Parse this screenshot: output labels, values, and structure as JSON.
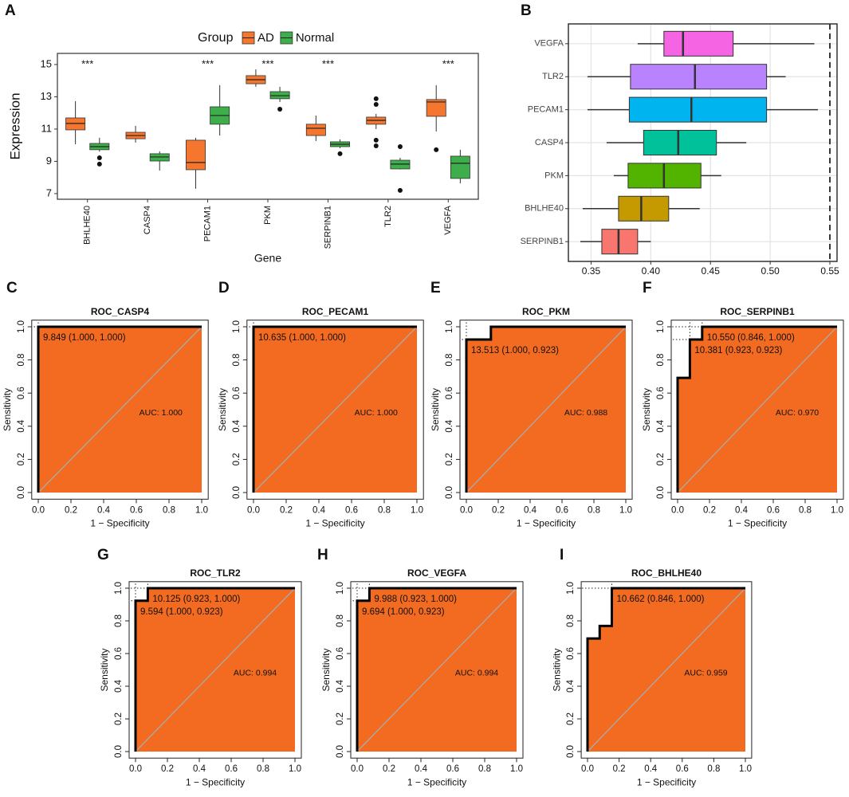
{
  "chart_data": [
    {
      "panel": "A",
      "type": "box",
      "orientation": "vertical",
      "legend_title": "Group",
      "x_label": "Gene",
      "y_label": "Expression",
      "categories": [
        "BHLHE40",
        "CASP4",
        "PECAM1",
        "PKM",
        "SERPINB1",
        "TLR2",
        "VEGFA"
      ],
      "significance": [
        "***",
        null,
        "***",
        "***",
        "***",
        null,
        "***"
      ],
      "ylim": [
        6.65,
        15.69
      ],
      "yticks": [
        7,
        9,
        11,
        13,
        15
      ],
      "series": [
        {
          "name": "AD",
          "color": "#F4762F",
          "boxes": [
            {
              "min": 10.06,
              "q1": 10.95,
              "median": 11.35,
              "q3": 11.69,
              "max": 12.73,
              "outliers": []
            },
            {
              "min": 10.16,
              "q1": 10.4,
              "median": 10.6,
              "q3": 10.8,
              "max": 11.2,
              "outliers": []
            },
            {
              "min": 7.3,
              "q1": 8.48,
              "median": 8.93,
              "q3": 10.31,
              "max": 10.46,
              "outliers": []
            },
            {
              "min": 13.62,
              "q1": 13.81,
              "median": 14.06,
              "q3": 14.31,
              "max": 14.7,
              "outliers": []
            },
            {
              "min": 10.26,
              "q1": 10.6,
              "median": 11.05,
              "q3": 11.3,
              "max": 11.84,
              "outliers": []
            },
            {
              "min": 11.0,
              "q1": 11.3,
              "median": 11.54,
              "q3": 11.74,
              "max": 11.94,
              "outliers": [
                12.88,
                12.53,
                10.31,
                9.96
              ]
            },
            {
              "min": 10.85,
              "q1": 11.79,
              "median": 12.68,
              "q3": 12.83,
              "max": 13.72,
              "outliers": [
                9.72
              ]
            }
          ]
        },
        {
          "name": "Normal",
          "color": "#3DAE4A",
          "boxes": [
            {
              "min": 9.6,
              "q1": 9.72,
              "median": 9.91,
              "q3": 10.11,
              "max": 10.46,
              "outliers": [
                9.22,
                8.83
              ]
            },
            {
              "min": 8.43,
              "q1": 9.02,
              "median": 9.27,
              "q3": 9.47,
              "max": 9.62,
              "outliers": []
            },
            {
              "min": 10.6,
              "q1": 11.3,
              "median": 11.84,
              "q3": 12.38,
              "max": 13.72,
              "outliers": []
            },
            {
              "min": 12.68,
              "q1": 12.88,
              "median": 13.07,
              "q3": 13.32,
              "max": 13.62,
              "outliers": [
                12.23
              ]
            },
            {
              "min": 9.81,
              "q1": 9.91,
              "median": 10.06,
              "q3": 10.21,
              "max": 10.36,
              "outliers": [
                9.47
              ]
            },
            {
              "min": 8.5,
              "q1": 8.53,
              "median": 8.83,
              "q3": 9.07,
              "max": 9.22,
              "outliers": [
                9.91,
                7.2
              ]
            },
            {
              "min": 7.64,
              "q1": 7.94,
              "median": 8.88,
              "q3": 9.32,
              "max": 9.72,
              "outliers": []
            }
          ]
        }
      ]
    },
    {
      "panel": "B",
      "type": "box",
      "orientation": "horizontal",
      "grid": true,
      "categories": [
        "VEGFA",
        "TLR2",
        "PECAM1",
        "CASP4",
        "PKM",
        "BHLHE40",
        "SERPINB1"
      ],
      "colors": [
        "#F564E3",
        "#B983FF",
        "#00B4EF",
        "#00C19A",
        "#53B400",
        "#C49A00",
        "#F8766D"
      ],
      "boxes": [
        {
          "min": 0.389,
          "q1": 0.411,
          "median": 0.427,
          "q3": 0.469,
          "max": 0.537
        },
        {
          "min": 0.347,
          "q1": 0.383,
          "median": 0.437,
          "q3": 0.497,
          "max": 0.513
        },
        {
          "min": 0.347,
          "q1": 0.382,
          "median": 0.434,
          "q3": 0.497,
          "max": 0.54
        },
        {
          "min": 0.363,
          "q1": 0.394,
          "median": 0.423,
          "q3": 0.455,
          "max": 0.48
        },
        {
          "min": 0.369,
          "q1": 0.381,
          "median": 0.411,
          "q3": 0.442,
          "max": 0.459
        },
        {
          "min": 0.343,
          "q1": 0.373,
          "median": 0.392,
          "q3": 0.415,
          "max": 0.441
        },
        {
          "min": 0.341,
          "q1": 0.359,
          "median": 0.373,
          "q3": 0.389,
          "max": 0.4
        }
      ],
      "reference_line": 0.55,
      "xlim": [
        0.331,
        0.556
      ],
      "xticks": [
        0.35,
        {
          "value": 0.4,
          "label": "0.40"
        },
        0.45,
        {
          "value": 0.5,
          "label": "0.50"
        },
        0.55
      ]
    },
    {
      "panel": "C",
      "type": "roc",
      "title": "ROC_CASP4",
      "x_label": "1 − Specificity",
      "y_label": "Sensitivity",
      "x": [
        0,
        0,
        1
      ],
      "values": [
        0,
        1,
        1
      ],
      "color": "#000000",
      "fill_color": "#F26B21",
      "diagonal_color": "#AAAAAA",
      "thresholds": [
        {
          "label": "9.849 (1.000, 1.000)",
          "x": 0,
          "y": 1
        }
      ],
      "auc_label": "AUC: 1.000",
      "xlim": [
        -0.04,
        1.04
      ],
      "ylim": [
        -0.04,
        1.04
      ],
      "xticks": [
        {
          "value": 0,
          "label": "0.0"
        },
        0.2,
        0.4,
        0.6,
        0.8,
        {
          "value": 1,
          "label": "1.0"
        }
      ],
      "yticks": [
        {
          "value": 0,
          "label": "0.0"
        },
        0.2,
        0.4,
        0.6,
        0.8,
        {
          "value": 1,
          "label": "1.0"
        }
      ]
    },
    {
      "panel": "D",
      "type": "roc",
      "title": "ROC_PECAM1",
      "x_label": "1 − Specificity",
      "y_label": "Sensitivity",
      "x": [
        0,
        0,
        1
      ],
      "values": [
        0,
        1,
        1
      ],
      "color": "#000000",
      "fill_color": "#F26B21",
      "diagonal_color": "#AAAAAA",
      "thresholds": [
        {
          "label": "10.635 (1.000, 1.000)",
          "x": 0,
          "y": 1
        }
      ],
      "auc_label": "AUC: 1.000",
      "xlim": [
        -0.04,
        1.04
      ],
      "ylim": [
        -0.04,
        1.04
      ],
      "xticks": [
        {
          "value": 0,
          "label": "0.0"
        },
        0.2,
        0.4,
        0.6,
        0.8,
        {
          "value": 1,
          "label": "1.0"
        }
      ],
      "yticks": [
        {
          "value": 0,
          "label": "0.0"
        },
        0.2,
        0.4,
        0.6,
        0.8,
        {
          "value": 1,
          "label": "1.0"
        }
      ]
    },
    {
      "panel": "E",
      "type": "roc",
      "title": "ROC_PKM",
      "x_label": "1 − Specificity",
      "y_label": "Sensitivity",
      "x": [
        0,
        0,
        0.154,
        0.154,
        1
      ],
      "values": [
        0,
        0.923,
        0.923,
        1,
        1
      ],
      "color": "#000000",
      "fill_color": "#F26B21",
      "diagonal_color": "#AAAAAA",
      "thresholds": [
        {
          "label": "13.513 (1.000, 0.923)",
          "x": 0,
          "y": 0.923
        }
      ],
      "auc_label": "AUC: 0.988",
      "xlim": [
        -0.04,
        1.04
      ],
      "ylim": [
        -0.04,
        1.04
      ],
      "xticks": [
        {
          "value": 0,
          "label": "0.0"
        },
        0.2,
        0.4,
        0.6,
        0.8,
        {
          "value": 1,
          "label": "1.0"
        }
      ],
      "yticks": [
        {
          "value": 0,
          "label": "0.0"
        },
        0.2,
        0.4,
        0.6,
        0.8,
        {
          "value": 1,
          "label": "1.0"
        }
      ]
    },
    {
      "panel": "F",
      "type": "roc",
      "title": "ROC_SERPINB1",
      "x_label": "1 − Specificity",
      "y_label": "Sensitivity",
      "x": [
        0,
        0,
        0.077,
        0.077,
        0.154,
        0.154,
        1
      ],
      "values": [
        0,
        0.692,
        0.692,
        0.923,
        0.923,
        1,
        1
      ],
      "color": "#000000",
      "fill_color": "#F26B21",
      "diagonal_color": "#AAAAAA",
      "thresholds": [
        {
          "label": "10.550 (0.846, 1.000)",
          "x": 0.154,
          "y": 1
        },
        {
          "label": "10.381 (0.923, 0.923)",
          "x": 0.077,
          "y": 0.923
        }
      ],
      "auc_label": "AUC: 0.970",
      "xlim": [
        -0.04,
        1.04
      ],
      "ylim": [
        -0.04,
        1.04
      ],
      "xticks": [
        {
          "value": 0,
          "label": "0.0"
        },
        0.2,
        0.4,
        0.6,
        0.8,
        {
          "value": 1,
          "label": "1.0"
        }
      ],
      "yticks": [
        {
          "value": 0,
          "label": "0.0"
        },
        0.2,
        0.4,
        0.6,
        0.8,
        {
          "value": 1,
          "label": "1.0"
        }
      ]
    },
    {
      "panel": "G",
      "type": "roc",
      "title": "ROC_TLR2",
      "x_label": "1 − Specificity",
      "y_label": "Sensitivity",
      "x": [
        0,
        0,
        0.077,
        0.077,
        1
      ],
      "values": [
        0,
        0.923,
        0.923,
        1,
        1
      ],
      "color": "#000000",
      "fill_color": "#F26B21",
      "diagonal_color": "#AAAAAA",
      "thresholds": [
        {
          "label": "10.125 (0.923, 1.000)",
          "x": 0.077,
          "y": 1
        },
        {
          "label": "9.594 (1.000, 0.923)",
          "x": 0,
          "y": 0.923
        }
      ],
      "auc_label": "AUC: 0.994",
      "xlim": [
        -0.04,
        1.04
      ],
      "ylim": [
        -0.04,
        1.04
      ],
      "xticks": [
        {
          "value": 0,
          "label": "0.0"
        },
        0.2,
        0.4,
        0.6,
        0.8,
        {
          "value": 1,
          "label": "1.0"
        }
      ],
      "yticks": [
        {
          "value": 0,
          "label": "0.0"
        },
        0.2,
        0.4,
        0.6,
        0.8,
        {
          "value": 1,
          "label": "1.0"
        }
      ]
    },
    {
      "panel": "H",
      "type": "roc",
      "title": "ROC_VEGFA",
      "x_label": "1 − Specificity",
      "y_label": "Sensitivity",
      "x": [
        0,
        0,
        0.077,
        0.077,
        1
      ],
      "values": [
        0,
        0.923,
        0.923,
        1,
        1
      ],
      "color": "#000000",
      "fill_color": "#F26B21",
      "diagonal_color": "#AAAAAA",
      "thresholds": [
        {
          "label": "9.988 (0.923, 1.000)",
          "x": 0.077,
          "y": 1
        },
        {
          "label": "9.694 (1.000, 0.923)",
          "x": 0,
          "y": 0.923
        }
      ],
      "auc_label": "AUC: 0.994",
      "xlim": [
        -0.04,
        1.04
      ],
      "ylim": [
        -0.04,
        1.04
      ],
      "xticks": [
        {
          "value": 0,
          "label": "0.0"
        },
        0.2,
        0.4,
        0.6,
        0.8,
        {
          "value": 1,
          "label": "1.0"
        }
      ],
      "yticks": [
        {
          "value": 0,
          "label": "0.0"
        },
        0.2,
        0.4,
        0.6,
        0.8,
        {
          "value": 1,
          "label": "1.0"
        }
      ]
    },
    {
      "panel": "I",
      "type": "roc",
      "title": "ROC_BHLHE40",
      "x_label": "1 − Specificity",
      "y_label": "Sensitivity",
      "x": [
        0,
        0,
        0.077,
        0.077,
        0.154,
        0.154,
        1
      ],
      "values": [
        0,
        0.692,
        0.692,
        0.769,
        0.769,
        1,
        1
      ],
      "color": "#000000",
      "fill_color": "#F26B21",
      "diagonal_color": "#AAAAAA",
      "thresholds": [
        {
          "label": "10.662 (0.846, 1.000)",
          "x": 0.154,
          "y": 1
        }
      ],
      "auc_label": "AUC: 0.959",
      "xlim": [
        -0.04,
        1.04
      ],
      "ylim": [
        -0.04,
        1.04
      ],
      "xticks": [
        {
          "value": 0,
          "label": "0.0"
        },
        0.2,
        0.4,
        0.6,
        0.8,
        {
          "value": 1,
          "label": "1.0"
        }
      ],
      "yticks": [
        {
          "value": 0,
          "label": "0.0"
        },
        0.2,
        0.4,
        0.6,
        0.8,
        {
          "value": 1,
          "label": "1.0"
        }
      ]
    }
  ]
}
